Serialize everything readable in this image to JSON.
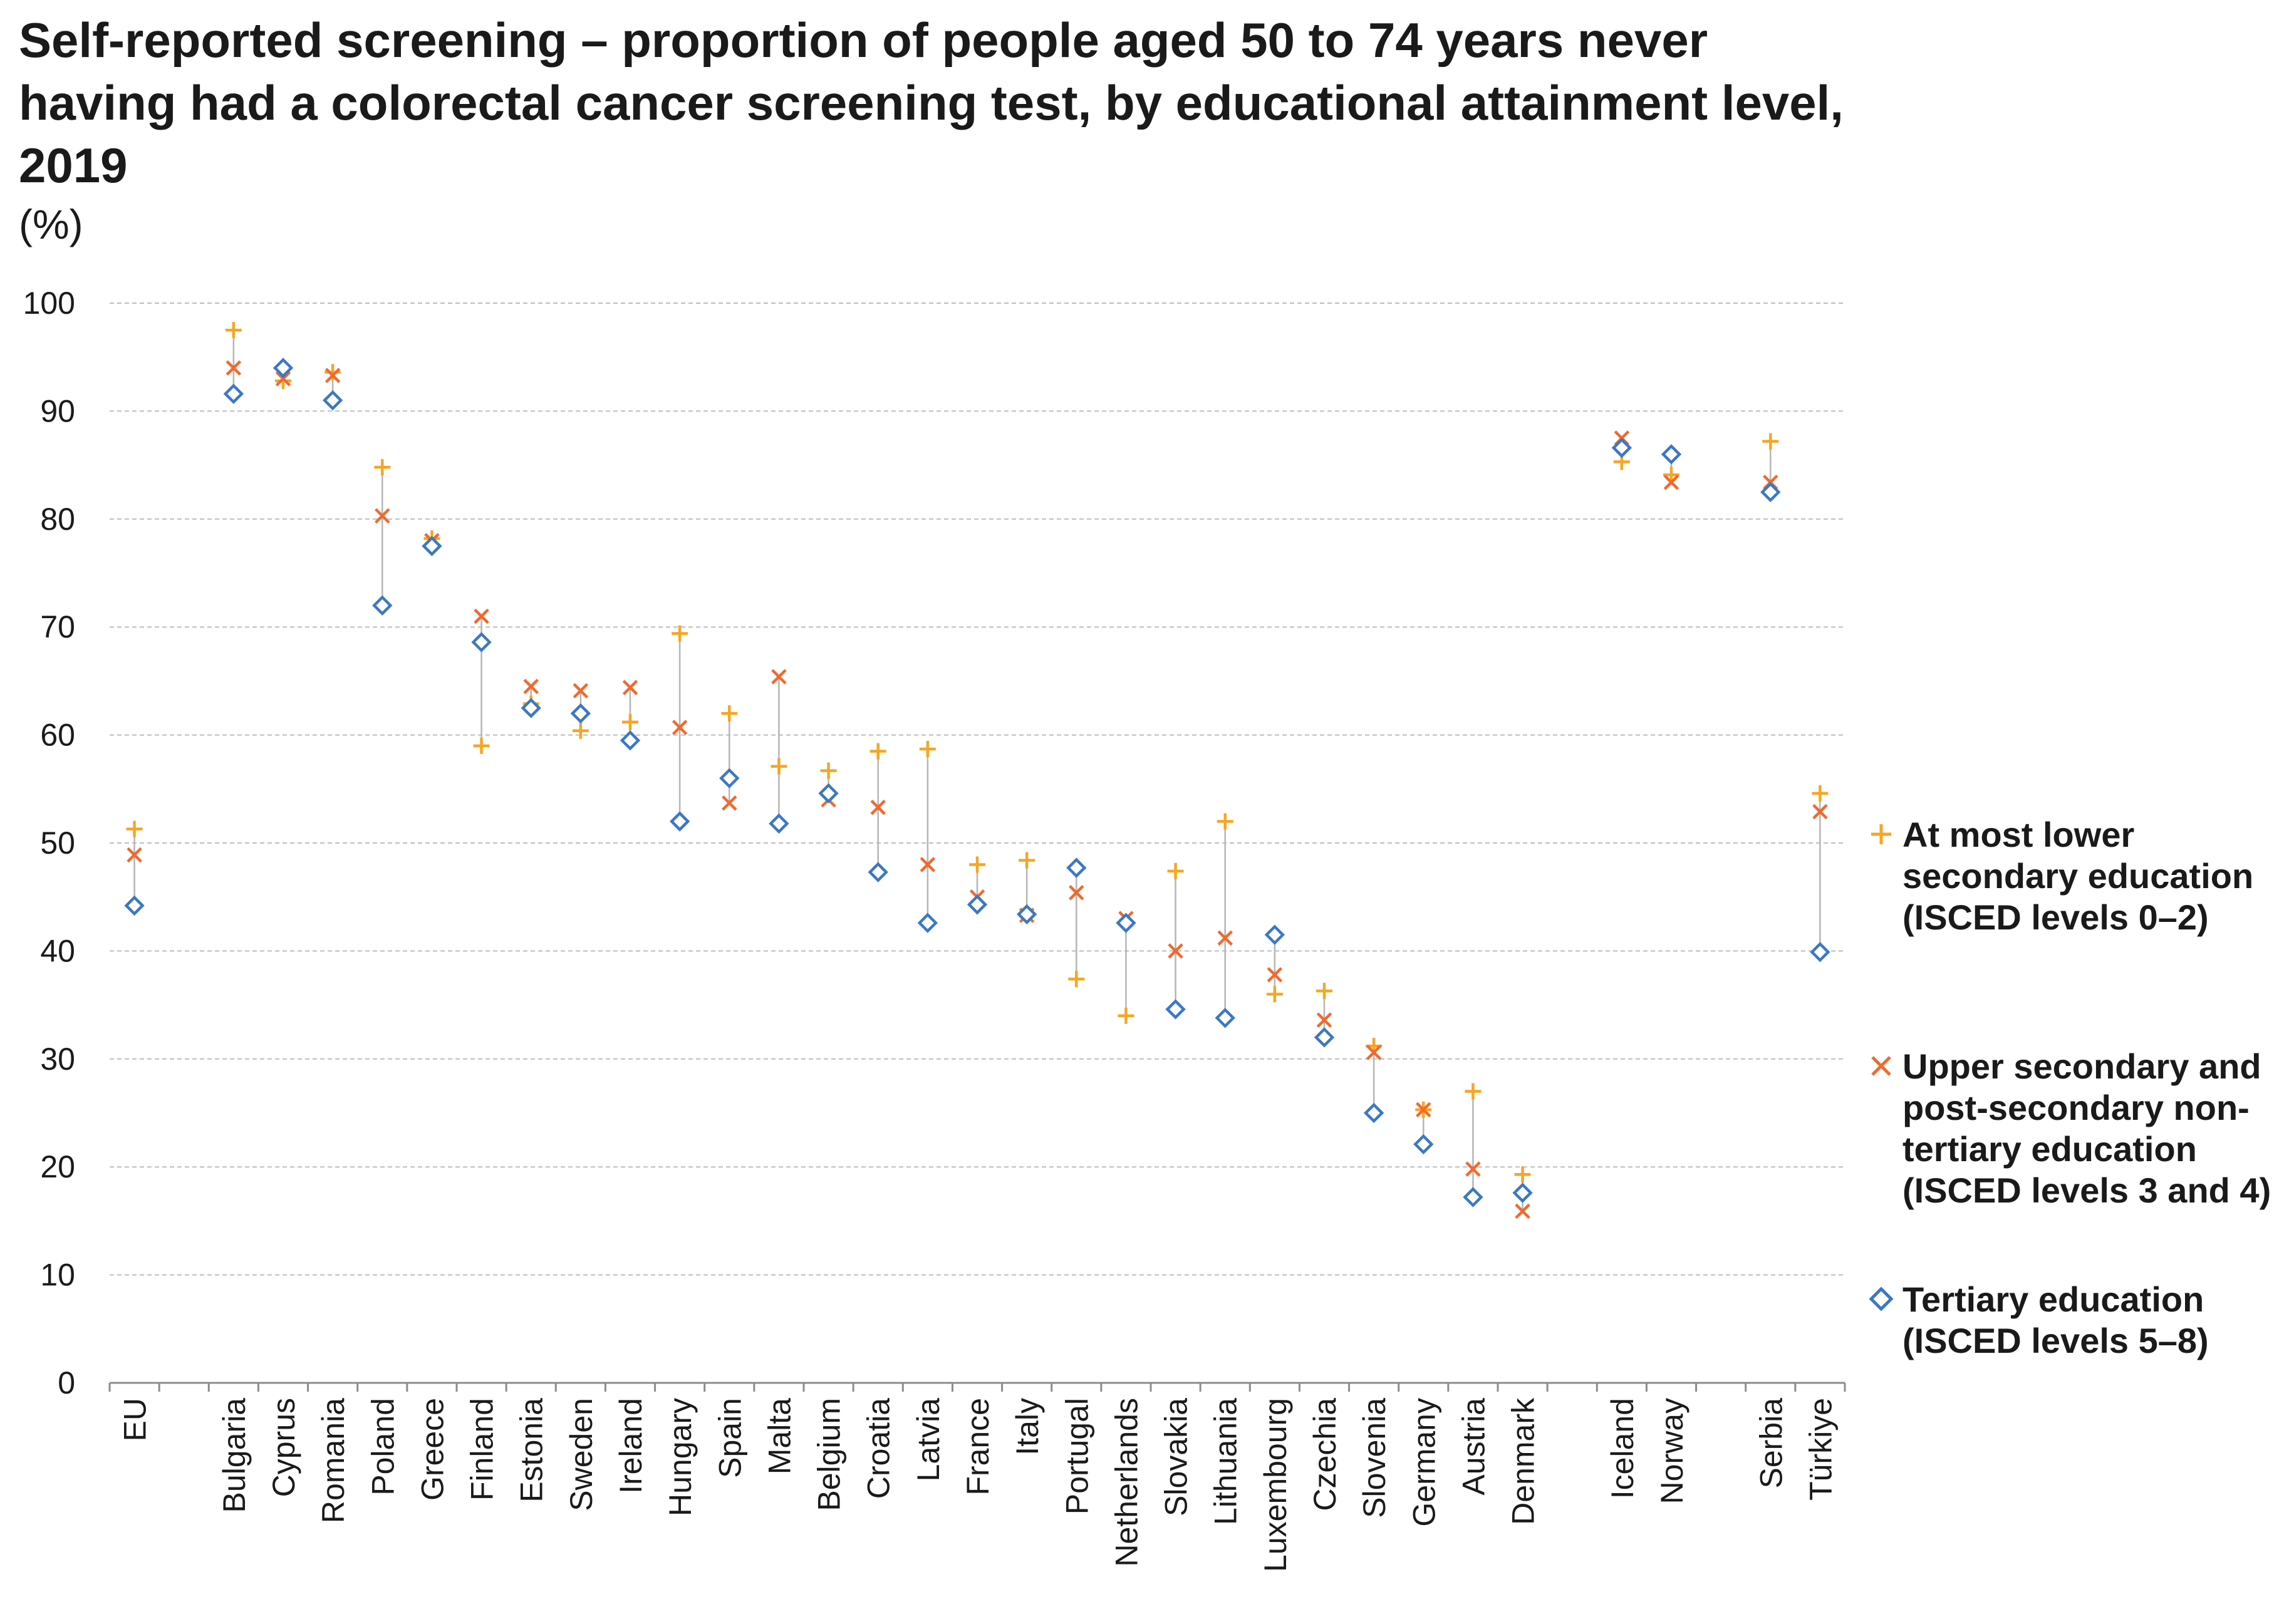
{
  "title": "Self-reported screening – proportion of people aged 50 to 74 years never having had a colorectal cancer screening test, by educational attainment level, 2019",
  "unit": "(%)",
  "colors": {
    "lower": "#F5A623",
    "upper": "#EF6A2E",
    "tertiary": "#3B78C2",
    "grid": "#bdbdbd",
    "connector": "#b5b5b5"
  },
  "legend": [
    {
      "key": "lower",
      "marker": "plus",
      "lines": [
        "At most lower",
        "secondary education",
        "(ISCED levels 0–2)"
      ]
    },
    {
      "key": "upper",
      "marker": "cross",
      "lines": [
        "Upper secondary and",
        "post-secondary non-",
        "tertiary education",
        "(ISCED levels 3 and 4)"
      ]
    },
    {
      "key": "tertiary",
      "marker": "diamond",
      "lines": [
        "Tertiary education",
        "(ISCED levels 5–8)"
      ]
    }
  ],
  "chart_data": {
    "type": "scatter",
    "ylim": [
      0,
      100
    ],
    "yticks": [
      0,
      10,
      20,
      30,
      40,
      50,
      60,
      70,
      80,
      90,
      100
    ],
    "grid": true,
    "legend_position": "right",
    "xlabel": "",
    "ylabel": "(%)",
    "categories": [
      "EU",
      "",
      "Bulgaria",
      "Cyprus",
      "Romania",
      "Poland",
      "Greece",
      "Finland",
      "Estonia",
      "Sweden",
      "Ireland",
      "Hungary",
      "Spain",
      "Malta",
      "Belgium",
      "Croatia",
      "Latvia",
      "France",
      "Italy",
      "Portugal",
      "Netherlands",
      "Slovakia",
      "Lithuania",
      "Luxembourg",
      "Czechia",
      "Slovenia",
      "Germany",
      "Austria",
      "Denmark",
      "",
      "Iceland",
      "Norway",
      "",
      "Serbia",
      "Türkiye"
    ],
    "series": [
      {
        "name": "At most lower secondary education (ISCED levels 0–2)",
        "key": "lower",
        "marker": "plus",
        "values": [
          51.3,
          null,
          97.5,
          92.8,
          93.6,
          84.8,
          78.2,
          59.0,
          62.9,
          60.4,
          61.2,
          69.4,
          62.0,
          57.1,
          56.7,
          58.5,
          58.7,
          48.0,
          48.4,
          37.4,
          34.0,
          47.4,
          52.0,
          36.0,
          36.3,
          31.2,
          25.3,
          27.0,
          19.3,
          null,
          85.3,
          84.1,
          null,
          87.2,
          54.6
        ]
      },
      {
        "name": "Upper secondary and post-secondary non-tertiary education (ISCED levels 3 and 4)",
        "key": "upper",
        "marker": "cross",
        "values": [
          48.9,
          null,
          94.0,
          93.0,
          93.3,
          80.3,
          78.0,
          71.0,
          64.5,
          64.1,
          64.4,
          60.7,
          53.7,
          65.4,
          54.0,
          53.3,
          48.0,
          45.0,
          43.3,
          45.4,
          43.0,
          40.0,
          41.2,
          37.8,
          33.6,
          30.6,
          25.3,
          19.8,
          15.9,
          null,
          87.5,
          83.4,
          null,
          83.4,
          52.9
        ]
      },
      {
        "name": "Tertiary education (ISCED levels 5–8)",
        "key": "tertiary",
        "marker": "diamond",
        "values": [
          44.2,
          null,
          91.6,
          94.0,
          91.0,
          72.0,
          77.5,
          68.6,
          62.5,
          62.0,
          59.5,
          52.0,
          56.0,
          51.8,
          54.6,
          47.3,
          42.6,
          44.3,
          43.4,
          47.7,
          42.6,
          34.6,
          33.8,
          41.5,
          32.0,
          25.0,
          22.1,
          17.2,
          17.6,
          null,
          86.6,
          86.0,
          null,
          82.5,
          39.9
        ]
      }
    ]
  }
}
